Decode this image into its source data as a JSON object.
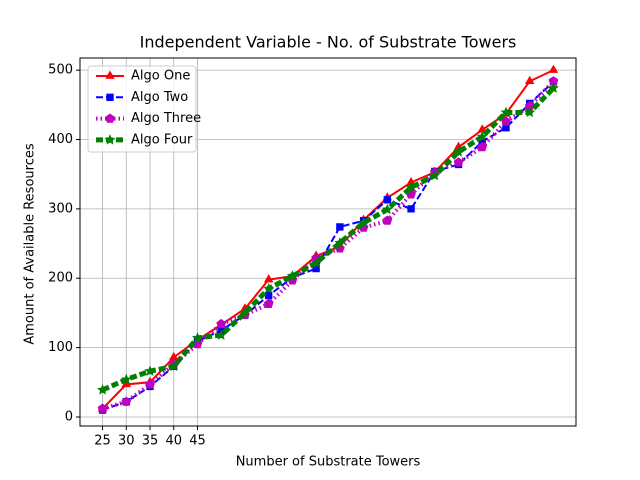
{
  "chart_data": {
    "type": "line",
    "title": "Independent Variable - No. of Substrate Towers",
    "x_label": "Number of Substrate Towers",
    "y_label": "Amount of Available Resources",
    "x": [
      25,
      30,
      35,
      40,
      45,
      50,
      55,
      60,
      65,
      70,
      75,
      80,
      85,
      90,
      95,
      100,
      105,
      110,
      115,
      120
    ],
    "series": [
      {
        "name": "Algo One",
        "color": "#ff0000",
        "linestyle": "solid",
        "marker": "triangle",
        "linewidth": 2,
        "values": [
          12,
          47,
          50,
          86,
          111,
          133,
          156,
          198,
          203,
          232,
          246,
          284,
          316,
          338,
          353,
          389,
          414,
          437,
          484,
          500
        ]
      },
      {
        "name": "Algo Two",
        "color": "#0000ff",
        "linestyle": "dashed",
        "marker": "square",
        "linewidth": 2,
        "values": [
          10,
          22,
          44,
          73,
          109,
          125,
          147,
          175,
          201,
          214,
          274,
          283,
          313,
          300,
          354,
          364,
          397,
          417,
          452,
          483
        ]
      },
      {
        "name": "Algo Three",
        "color": "#bf00bf",
        "linestyle": "dotted",
        "marker": "pentagon",
        "linewidth": 4,
        "values": [
          12,
          22,
          47,
          76,
          105,
          134,
          147,
          163,
          197,
          229,
          243,
          273,
          283,
          321,
          353,
          367,
          389,
          426,
          448,
          484
        ]
      },
      {
        "name": "Algo Four",
        "color": "#008000",
        "linestyle": "dashed",
        "marker": "star",
        "linewidth": 5,
        "values": [
          39,
          54,
          66,
          73,
          114,
          118,
          150,
          185,
          203,
          222,
          251,
          280,
          299,
          331,
          348,
          382,
          404,
          439,
          439,
          474
        ]
      }
    ],
    "xlim": [
      20.25,
      124.75
    ],
    "xticks": [
      25,
      30,
      35,
      40,
      45
    ],
    "ylim": [
      -13,
      517.5
    ],
    "yticks": [
      0,
      100,
      200,
      300,
      400,
      500
    ],
    "grid": true,
    "legend": "upper left"
  }
}
